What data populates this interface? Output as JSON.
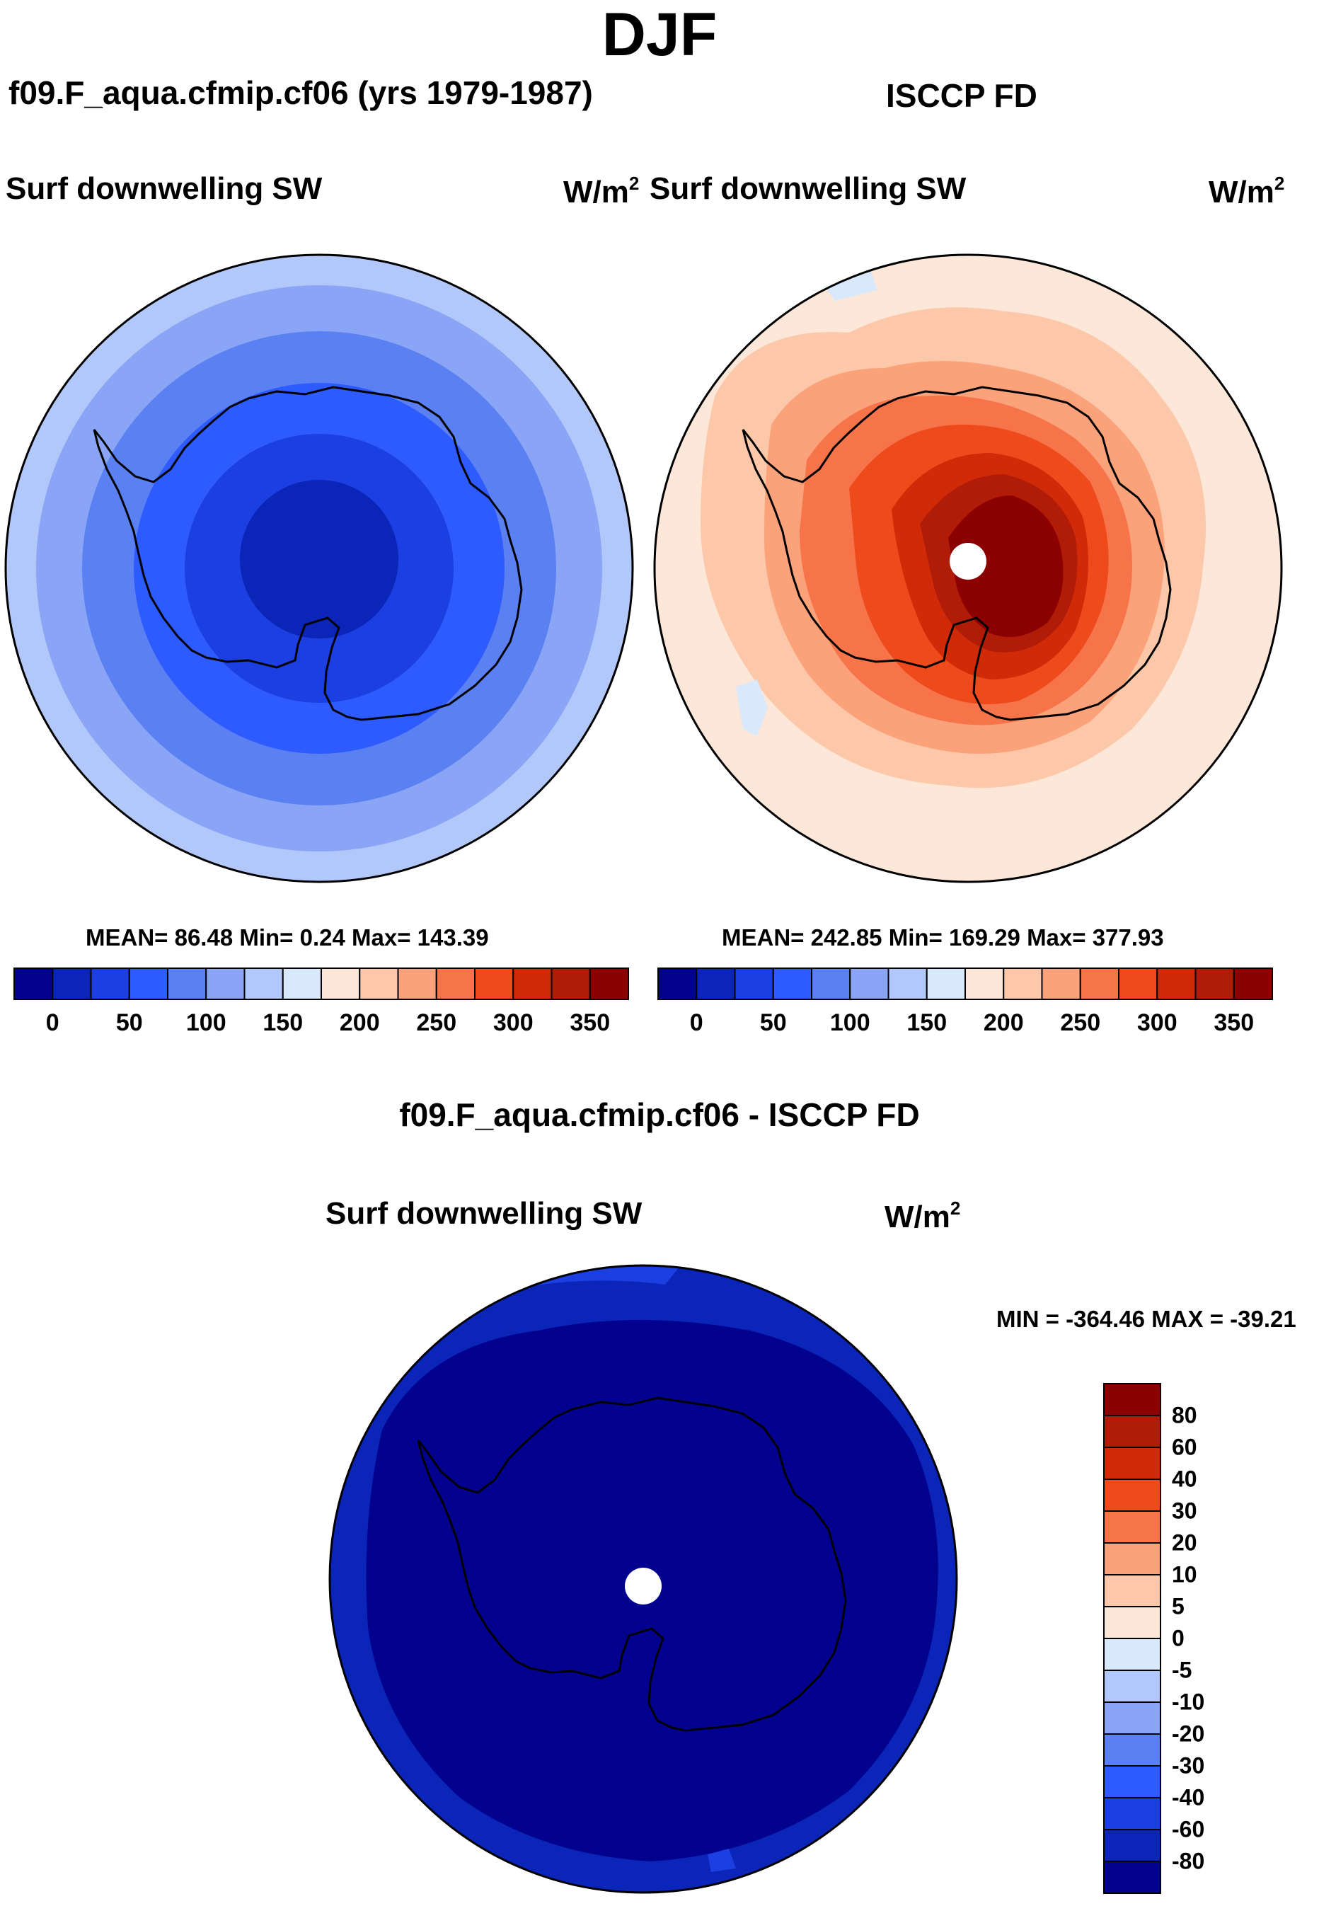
{
  "season": "DJF",
  "panels": {
    "model": {
      "case_title": "f09.F_aqua.cfmip.cf06 (yrs 1979-1987)",
      "variable": "Surf downwelling SW",
      "units": "W/m",
      "units_exp": "2",
      "stats": "MEAN=  86.48  Min=    0.24  Max= 143.39"
    },
    "obs": {
      "case_title": "ISCCP FD",
      "variable": "Surf downwelling SW",
      "units": "W/m",
      "units_exp": "2",
      "stats": "MEAN= 242.85  Min= 169.29  Max= 377.93"
    },
    "diff": {
      "case_title": "f09.F_aqua.cfmip.cf06 - ISCCP FD",
      "variable": "Surf downwelling SW",
      "units": "W/m",
      "units_exp": "2",
      "stats": "MIN = -364.46 MAX = -39.21"
    }
  },
  "chart_data": [
    {
      "type": "heatmap",
      "projection": "south polar stereographic",
      "title": "f09.F_aqua.cfmip.cf06 (yrs 1979-1987)",
      "subtitle": "Surf downwelling SW",
      "units": "W/m2",
      "mean": 86.48,
      "min": 0.24,
      "max": 143.39,
      "colorbar_ticks": [
        "0",
        "50",
        "100",
        "150",
        "200",
        "250",
        "300",
        "350"
      ],
      "colorbar_colors": [
        "#02028f",
        "#0a25b8",
        "#1b3fe0",
        "#2e5bff",
        "#5b80f2",
        "#8aa5f5",
        "#b3c8fa",
        "#d9e9fb",
        "#fde7d9",
        "#fcc8a9",
        "#fba27a",
        "#f7744a",
        "#ee4a1c",
        "#d02a08",
        "#b01c08",
        "#8b0000"
      ],
      "field_levels_center_to_edge": [
        {
          "range": "0-25",
          "color": "#0a25b8"
        },
        {
          "range": "25-50",
          "color": "#1b3fe0"
        },
        {
          "range": "50-75",
          "color": "#2e5bff"
        },
        {
          "range": "75-100",
          "color": "#5b80f2"
        },
        {
          "range": "100-125",
          "color": "#8aa5f5"
        },
        {
          "range": "125-150",
          "color": "#b3c8fa"
        }
      ]
    },
    {
      "type": "heatmap",
      "projection": "south polar stereographic",
      "title": "ISCCP FD",
      "subtitle": "Surf downwelling SW",
      "units": "W/m2",
      "mean": 242.85,
      "min": 169.29,
      "max": 377.93,
      "colorbar_ticks": [
        "0",
        "50",
        "100",
        "150",
        "200",
        "250",
        "300",
        "350"
      ],
      "colorbar_colors": [
        "#02028f",
        "#0a25b8",
        "#1b3fe0",
        "#2e5bff",
        "#5b80f2",
        "#8aa5f5",
        "#b3c8fa",
        "#d9e9fb",
        "#fde7d9",
        "#fcc8a9",
        "#fba27a",
        "#f7744a",
        "#ee4a1c",
        "#d02a08",
        "#b01c08",
        "#8b0000"
      ],
      "field_levels_edge_to_center": [
        {
          "range": "150-175",
          "color": "#d9e9fb"
        },
        {
          "range": "175-200",
          "color": "#fde7d9"
        },
        {
          "range": "200-225",
          "color": "#fcc8a9"
        },
        {
          "range": "225-250",
          "color": "#fba27a"
        },
        {
          "range": "250-275",
          "color": "#f7744a"
        },
        {
          "range": "275-300",
          "color": "#ee4a1c"
        },
        {
          "range": "300-325",
          "color": "#d02a08"
        },
        {
          "range": "325-350",
          "color": "#b01c08"
        },
        {
          "range": ">350",
          "color": "#8b0000"
        }
      ]
    },
    {
      "type": "heatmap",
      "projection": "south polar stereographic",
      "title": "f09.F_aqua.cfmip.cf06 - ISCCP FD",
      "subtitle": "Surf downwelling SW",
      "units": "W/m2",
      "min": -364.46,
      "max": -39.21,
      "colorbar_ticks": [
        "80",
        "60",
        "40",
        "30",
        "20",
        "10",
        "5",
        "0",
        "-5",
        "-10",
        "-20",
        "-30",
        "-40",
        "-60",
        "-80"
      ],
      "colorbar_colors_top_to_bottom": [
        "#8b0000",
        "#b01c08",
        "#d02a08",
        "#ee4a1c",
        "#f7744a",
        "#fba27a",
        "#fcc8a9",
        "#fde7d9",
        "#d9e9fb",
        "#b3c8fa",
        "#8aa5f5",
        "#5b80f2",
        "#2e5bff",
        "#1b3fe0",
        "#0a25b8",
        "#02028f"
      ],
      "field_levels": [
        {
          "range": "< -80",
          "color": "#02028f",
          "region": "interior"
        },
        {
          "range": "-80 to -60",
          "color": "#0a25b8",
          "region": "outer ring"
        },
        {
          "range": "-60 to -40",
          "color": "#1b3fe0",
          "region": "edge patches"
        }
      ]
    }
  ]
}
